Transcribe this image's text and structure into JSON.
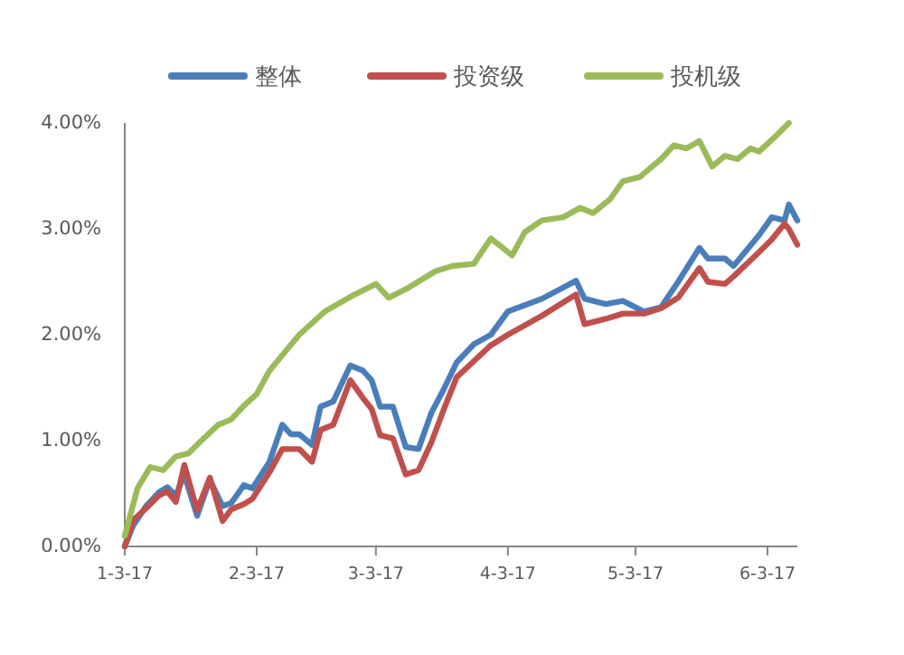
{
  "chart_data": {
    "type": "line",
    "legend": "top",
    "grid": false,
    "line_style": "solid",
    "marker": "none",
    "xlim": [
      "2017-01-03",
      "2017-06-10"
    ],
    "xticks": [
      {
        "value": "2017-01-03",
        "label": "1-3-17"
      },
      {
        "value": "2017-02-03",
        "label": "2-3-17"
      },
      {
        "value": "2017-03-03",
        "label": "3-3-17"
      },
      {
        "value": "2017-04-03",
        "label": "4-3-17"
      },
      {
        "value": "2017-05-03",
        "label": "5-3-17"
      },
      {
        "value": "2017-06-03",
        "label": "6-3-17"
      }
    ],
    "ylim": [
      0,
      4
    ],
    "yticks": [
      {
        "value": 0,
        "label": "0.00%"
      },
      {
        "value": 1,
        "label": "1.00%"
      },
      {
        "value": 2,
        "label": "2.00%"
      },
      {
        "value": 3,
        "label": "3.00%"
      },
      {
        "value": 4,
        "label": "4.00%"
      }
    ],
    "x": [
      "2017-01-03",
      "2017-01-05",
      "2017-01-08",
      "2017-01-11",
      "2017-01-13",
      "2017-01-15",
      "2017-01-17",
      "2017-01-20",
      "2017-01-23",
      "2017-01-26",
      "2017-01-28",
      "2017-01-31",
      "2017-02-02",
      "2017-02-06",
      "2017-02-09",
      "2017-02-11",
      "2017-02-13",
      "2017-02-16",
      "2017-02-18",
      "2017-02-21",
      "2017-02-25",
      "2017-02-28",
      "2017-03-02",
      "2017-03-04",
      "2017-03-07",
      "2017-03-10",
      "2017-03-13",
      "2017-03-16",
      "2017-03-19",
      "2017-03-22",
      "2017-03-26",
      "2017-03-30",
      "2017-04-03",
      "2017-04-11",
      "2017-04-19",
      "2017-04-21",
      "2017-04-26",
      "2017-04-30",
      "2017-05-05",
      "2017-05-09",
      "2017-05-13",
      "2017-05-18",
      "2017-05-20",
      "2017-05-24",
      "2017-05-26",
      "2017-06-01",
      "2017-06-04",
      "2017-06-07",
      "2017-06-08",
      "2017-06-10"
    ],
    "series": [
      {
        "name": "整体",
        "color": "#4a7ebb",
        "values": [
          0,
          0.2,
          0.38,
          0.51,
          0.56,
          0.48,
          0.68,
          0.29,
          0.63,
          0.38,
          0.41,
          0.58,
          0.55,
          0.8,
          1.15,
          1.06,
          1.06,
          0.96,
          1.32,
          1.37,
          1.71,
          1.66,
          1.57,
          1.32,
          1.32,
          0.94,
          0.92,
          1.26,
          1.49,
          1.74,
          1.91,
          2.0,
          2.22,
          2.34,
          2.51,
          2.34,
          2.29,
          2.32,
          2.22,
          2.26,
          2.5,
          2.82,
          2.72,
          2.72,
          2.65,
          2.94,
          3.11,
          3.08,
          3.23,
          3.08
        ]
      },
      {
        "name": "投资级",
        "color": "#c0504d",
        "values": [
          0,
          0.25,
          0.36,
          0.48,
          0.52,
          0.42,
          0.77,
          0.34,
          0.65,
          0.24,
          0.35,
          0.4,
          0.45,
          0.7,
          0.92,
          0.92,
          0.92,
          0.8,
          1.1,
          1.15,
          1.57,
          1.4,
          1.3,
          1.05,
          1.02,
          0.68,
          0.72,
          0.98,
          1.3,
          1.6,
          1.75,
          1.9,
          2.0,
          2.18,
          2.38,
          2.1,
          2.15,
          2.2,
          2.2,
          2.25,
          2.35,
          2.63,
          2.5,
          2.48,
          2.55,
          2.78,
          2.9,
          3.05,
          3.0,
          2.85
        ]
      },
      {
        "name": "投机级",
        "color": "#9bbb59",
        "x": [
          "2017-01-03",
          "2017-01-06",
          "2017-01-09",
          "2017-01-12",
          "2017-01-15",
          "2017-01-18",
          "2017-01-21",
          "2017-01-25",
          "2017-01-28",
          "2017-01-31",
          "2017-02-03",
          "2017-02-06",
          "2017-02-13",
          "2017-02-19",
          "2017-02-26",
          "2017-03-03",
          "2017-03-06",
          "2017-03-10",
          "2017-03-17",
          "2017-03-21",
          "2017-03-26",
          "2017-03-30",
          "2017-04-04",
          "2017-04-07",
          "2017-04-11",
          "2017-04-16",
          "2017-04-20",
          "2017-04-23",
          "2017-04-27",
          "2017-04-30",
          "2017-05-04",
          "2017-05-09",
          "2017-05-12",
          "2017-05-15",
          "2017-05-18",
          "2017-05-21",
          "2017-05-24",
          "2017-05-27",
          "2017-05-30",
          "2017-06-01",
          "2017-06-05",
          "2017-06-08"
        ],
        "values": [
          0.1,
          0.55,
          0.75,
          0.72,
          0.85,
          0.88,
          1.0,
          1.15,
          1.2,
          1.33,
          1.44,
          1.66,
          2.0,
          2.22,
          2.38,
          2.48,
          2.35,
          2.43,
          2.6,
          2.65,
          2.67,
          2.91,
          2.75,
          2.97,
          3.08,
          3.11,
          3.2,
          3.15,
          3.28,
          3.45,
          3.49,
          3.66,
          3.79,
          3.76,
          3.83,
          3.59,
          3.69,
          3.66,
          3.76,
          3.73,
          3.88,
          4.0
        ]
      }
    ]
  }
}
